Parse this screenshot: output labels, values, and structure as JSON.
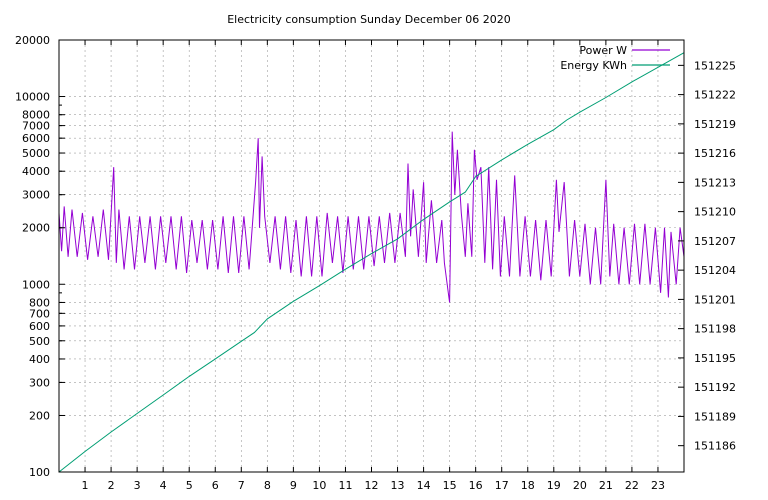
{
  "chart_data": {
    "type": "line",
    "title": "Electricity consumption Sunday December 06 2020",
    "x": {
      "min": 0,
      "max": 24,
      "ticks": [
        1,
        2,
        3,
        4,
        5,
        6,
        7,
        8,
        9,
        10,
        11,
        12,
        13,
        14,
        15,
        16,
        17,
        18,
        19,
        20,
        21,
        22,
        23
      ]
    },
    "y_left": {
      "scale": "log",
      "min": 100,
      "max": 20000,
      "ticks": [
        100,
        200,
        300,
        400,
        500,
        600,
        700,
        800,
        1000,
        2000,
        3000,
        4000,
        5000,
        6000,
        7000,
        8000,
        10000,
        20000
      ]
    },
    "y_right": {
      "min": 151183.3,
      "max": 151227.6,
      "ticks": [
        151186,
        151189,
        151192,
        151195,
        151198,
        151201,
        151204,
        151207,
        151210,
        151213,
        151216,
        151219,
        151222,
        151225
      ]
    },
    "grid": true,
    "legend_position": "top-right",
    "series": [
      {
        "name": "Power W",
        "color": "#9400d3",
        "axis": "left",
        "points": [
          [
            0.0,
            2400
          ],
          [
            0.1,
            1500
          ],
          [
            0.2,
            2600
          ],
          [
            0.35,
            1400
          ],
          [
            0.5,
            2500
          ],
          [
            0.7,
            1400
          ],
          [
            0.9,
            2400
          ],
          [
            1.1,
            1350
          ],
          [
            1.3,
            2300
          ],
          [
            1.5,
            1400
          ],
          [
            1.7,
            2500
          ],
          [
            1.9,
            1350
          ],
          [
            2.1,
            4200
          ],
          [
            2.2,
            1300
          ],
          [
            2.3,
            2500
          ],
          [
            2.5,
            1200
          ],
          [
            2.7,
            2300
          ],
          [
            2.9,
            1200
          ],
          [
            3.1,
            2300
          ],
          [
            3.3,
            1300
          ],
          [
            3.5,
            2300
          ],
          [
            3.7,
            1200
          ],
          [
            3.9,
            2300
          ],
          [
            4.1,
            1300
          ],
          [
            4.3,
            2300
          ],
          [
            4.5,
            1200
          ],
          [
            4.7,
            2300
          ],
          [
            4.9,
            1150
          ],
          [
            5.1,
            2200
          ],
          [
            5.3,
            1300
          ],
          [
            5.5,
            2200
          ],
          [
            5.7,
            1200
          ],
          [
            5.9,
            2200
          ],
          [
            6.1,
            1200
          ],
          [
            6.3,
            2300
          ],
          [
            6.5,
            1150
          ],
          [
            6.7,
            2300
          ],
          [
            6.9,
            1150
          ],
          [
            7.1,
            2300
          ],
          [
            7.3,
            1200
          ],
          [
            7.55,
            3500
          ],
          [
            7.65,
            6000
          ],
          [
            7.7,
            2000
          ],
          [
            7.8,
            4800
          ],
          [
            7.9,
            2300
          ],
          [
            8.1,
            1300
          ],
          [
            8.3,
            2300
          ],
          [
            8.5,
            1200
          ],
          [
            8.7,
            2300
          ],
          [
            8.9,
            1150
          ],
          [
            9.1,
            2200
          ],
          [
            9.3,
            1100
          ],
          [
            9.5,
            2300
          ],
          [
            9.7,
            1100
          ],
          [
            9.9,
            2300
          ],
          [
            10.1,
            1100
          ],
          [
            10.3,
            2400
          ],
          [
            10.5,
            1300
          ],
          [
            10.7,
            2300
          ],
          [
            10.9,
            1150
          ],
          [
            11.1,
            2300
          ],
          [
            11.3,
            1200
          ],
          [
            11.5,
            2300
          ],
          [
            11.7,
            1200
          ],
          [
            11.9,
            2300
          ],
          [
            12.1,
            1250
          ],
          [
            12.3,
            2300
          ],
          [
            12.5,
            1300
          ],
          [
            12.7,
            2400
          ],
          [
            12.9,
            1300
          ],
          [
            13.1,
            2400
          ],
          [
            13.3,
            1400
          ],
          [
            13.4,
            4400
          ],
          [
            13.5,
            1800
          ],
          [
            13.6,
            3200
          ],
          [
            13.8,
            1400
          ],
          [
            14.0,
            3500
          ],
          [
            14.1,
            1300
          ],
          [
            14.3,
            2800
          ],
          [
            14.5,
            1300
          ],
          [
            14.7,
            2200
          ],
          [
            14.8,
            1300
          ],
          [
            14.95,
            900
          ],
          [
            15.0,
            800
          ],
          [
            15.1,
            6500
          ],
          [
            15.2,
            3000
          ],
          [
            15.3,
            5200
          ],
          [
            15.45,
            2400
          ],
          [
            15.6,
            1400
          ],
          [
            15.7,
            2700
          ],
          [
            15.85,
            1400
          ],
          [
            15.95,
            5200
          ],
          [
            16.05,
            3600
          ],
          [
            16.2,
            4200
          ],
          [
            16.35,
            1300
          ],
          [
            16.5,
            4200
          ],
          [
            16.65,
            1200
          ],
          [
            16.8,
            3600
          ],
          [
            16.95,
            1100
          ],
          [
            17.1,
            2300
          ],
          [
            17.3,
            1100
          ],
          [
            17.5,
            3800
          ],
          [
            17.7,
            1100
          ],
          [
            17.9,
            2300
          ],
          [
            18.1,
            1100
          ],
          [
            18.3,
            2200
          ],
          [
            18.5,
            1050
          ],
          [
            18.7,
            2200
          ],
          [
            18.9,
            1100
          ],
          [
            19.1,
            3600
          ],
          [
            19.2,
            1900
          ],
          [
            19.4,
            3500
          ],
          [
            19.6,
            1100
          ],
          [
            19.8,
            2200
          ],
          [
            20.0,
            1100
          ],
          [
            20.2,
            2100
          ],
          [
            20.4,
            1000
          ],
          [
            20.6,
            2000
          ],
          [
            20.8,
            1000
          ],
          [
            21.0,
            3600
          ],
          [
            21.15,
            1100
          ],
          [
            21.3,
            2100
          ],
          [
            21.5,
            1000
          ],
          [
            21.7,
            2000
          ],
          [
            21.9,
            1000
          ],
          [
            22.1,
            2100
          ],
          [
            22.3,
            1000
          ],
          [
            22.5,
            2100
          ],
          [
            22.7,
            1000
          ],
          [
            22.9,
            2000
          ],
          [
            23.1,
            900
          ],
          [
            23.25,
            2000
          ],
          [
            23.4,
            850
          ],
          [
            23.5,
            1900
          ],
          [
            23.7,
            1000
          ],
          [
            23.85,
            2000
          ],
          [
            24.0,
            1400
          ]
        ]
      },
      {
        "name": "Energy KWh",
        "color": "#009e73",
        "axis": "right",
        "points": [
          [
            0.0,
            151183.3
          ],
          [
            1.0,
            151185.4
          ],
          [
            2.0,
            151187.4
          ],
          [
            3.0,
            151189.3
          ],
          [
            4.0,
            151191.2
          ],
          [
            5.0,
            151193.1
          ],
          [
            6.0,
            151194.9
          ],
          [
            7.0,
            151196.7
          ],
          [
            7.5,
            151197.6
          ],
          [
            8.0,
            151199.0
          ],
          [
            9.0,
            151200.8
          ],
          [
            10.0,
            151202.4
          ],
          [
            11.0,
            151204.1
          ],
          [
            12.0,
            151205.7
          ],
          [
            13.0,
            151207.2
          ],
          [
            14.0,
            151209.2
          ],
          [
            15.0,
            151211.0
          ],
          [
            15.6,
            151212.0
          ],
          [
            16.0,
            151213.6
          ],
          [
            17.0,
            151215.3
          ],
          [
            18.0,
            151216.9
          ],
          [
            19.0,
            151218.4
          ],
          [
            19.5,
            151219.4
          ],
          [
            20.0,
            151220.2
          ],
          [
            21.0,
            151221.7
          ],
          [
            22.0,
            151223.3
          ],
          [
            23.0,
            151224.8
          ],
          [
            24.0,
            151226.3
          ]
        ]
      }
    ]
  }
}
